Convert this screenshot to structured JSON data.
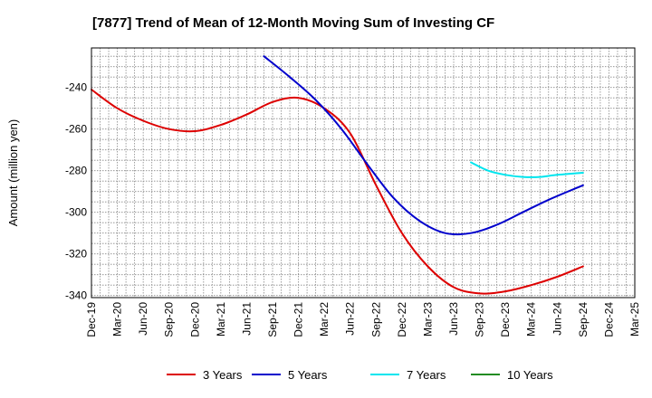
{
  "chart_data": {
    "type": "line",
    "title": "[7877]  Trend of Mean of 12-Month Moving Sum of Investing CF",
    "xlabel": "",
    "ylabel": "Amount (million yen)",
    "ylim": [
      -341,
      -221
    ],
    "yticks": [
      -240,
      -260,
      -280,
      -300,
      -320,
      -340
    ],
    "ytick_labels": [
      "-240",
      "-260",
      "-280",
      "-300",
      "-320",
      "-340"
    ],
    "x_ticks": [
      "Dec-19",
      "Mar-20",
      "Jun-20",
      "Sep-20",
      "Dec-20",
      "Mar-21",
      "Jun-21",
      "Sep-21",
      "Dec-21",
      "Mar-22",
      "Jun-22",
      "Sep-22",
      "Dec-22",
      "Mar-23",
      "Jun-23",
      "Sep-23",
      "Dec-23",
      "Mar-24",
      "Jun-24",
      "Sep-24",
      "Dec-24",
      "Mar-25"
    ],
    "x_range_months": [
      0,
      63
    ],
    "grid": true,
    "legend_position": "bottom",
    "series": [
      {
        "name": "3 Years",
        "color": "#dd0000",
        "x": [
          0,
          3,
          6,
          9,
          12,
          15,
          18,
          21,
          24,
          27,
          30,
          33,
          36,
          39,
          42,
          45,
          48,
          51,
          54,
          57
        ],
        "values": [
          -241,
          -250,
          -256,
          -260,
          -261,
          -258,
          -253,
          -247,
          -245,
          -250,
          -262,
          -287,
          -310,
          -326,
          -336,
          -339,
          -338,
          -335,
          -331,
          -326
        ]
      },
      {
        "name": "5 Years",
        "color": "#0000cc",
        "x": [
          20,
          23,
          26,
          29,
          32,
          35,
          38,
          41,
          44,
          47,
          50,
          53,
          57
        ],
        "values": [
          -225,
          -235,
          -246,
          -260,
          -277,
          -293,
          -304,
          -310,
          -310,
          -306,
          -300,
          -294,
          -287
        ]
      },
      {
        "name": "7 Years",
        "color": "#00e5ee",
        "x": [
          44,
          46,
          48,
          50,
          52,
          54,
          57
        ],
        "values": [
          -276,
          -280,
          -282,
          -283,
          -283,
          -282,
          -281
        ]
      },
      {
        "name": "10 Years",
        "color": "#228b22",
        "x": [],
        "values": []
      }
    ]
  }
}
